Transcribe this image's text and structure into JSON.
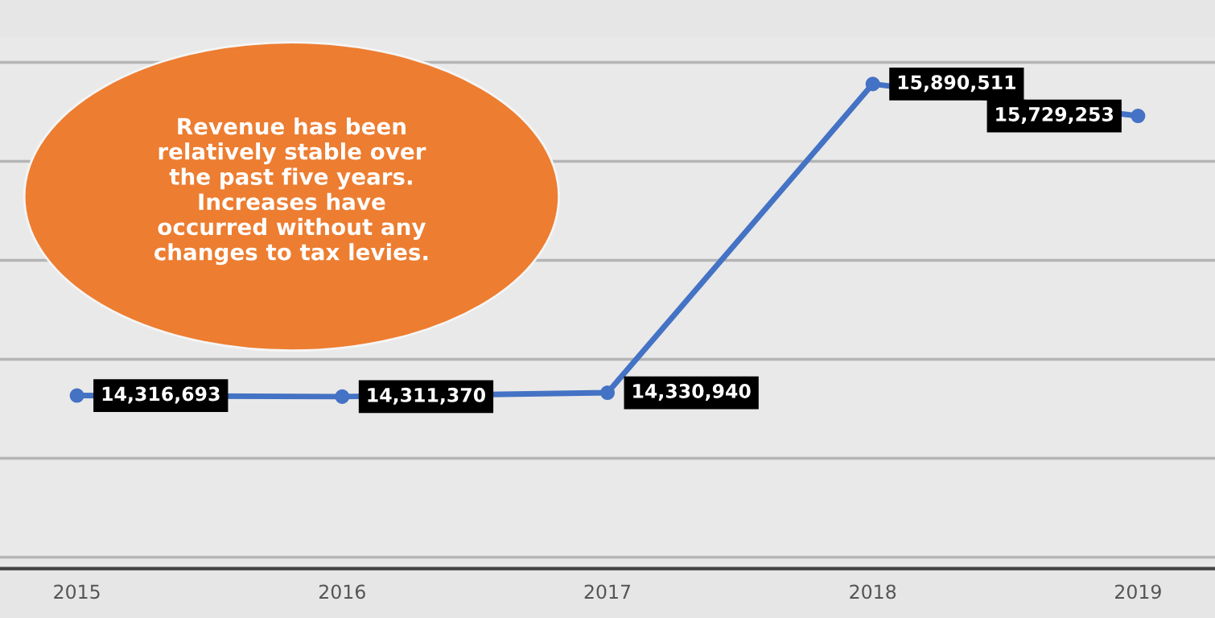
{
  "chart_data": {
    "type": "line",
    "categories": [
      "2015",
      "2016",
      "2017",
      "2018",
      "2019"
    ],
    "series": [
      {
        "color": "#4472c4",
        "values": [
          14316693,
          14311370,
          14330940,
          15890511,
          15729253
        ],
        "value_labels": [
          "14,316,693",
          "14,311,370",
          "14,330,940",
          "15,890,511",
          "15,729,253"
        ]
      }
    ],
    "tick_labels": "x",
    "grid": "y",
    "marker": "circle",
    "line_style": "solid",
    "annotations": [
      "Revenue has been\nrelatively stable over\nthe past five years.\nIncreases have\noccurred without any\nchanges to tax levies."
    ]
  }
}
